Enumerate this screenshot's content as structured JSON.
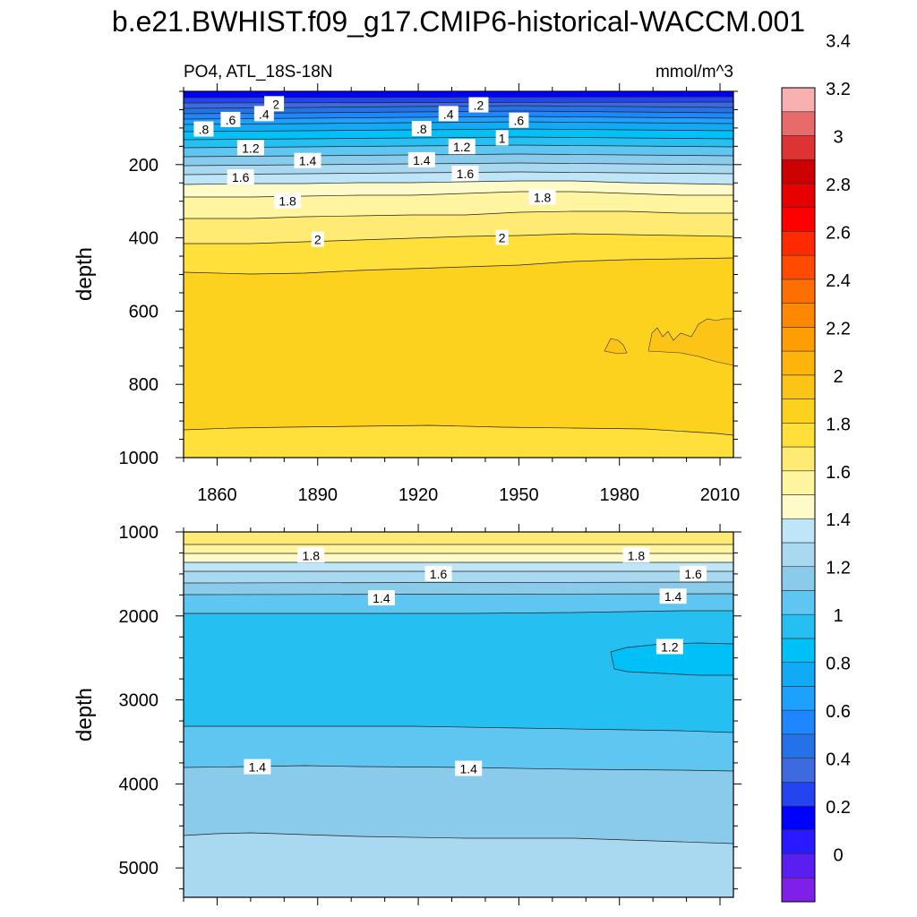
{
  "title": "b.e21.BWHIST.f09_g17.CMIP6-historical-WACCM.001",
  "colors": {
    "levels": [
      -0.2,
      0,
      0.2,
      0.4,
      0.6,
      0.8,
      1.0,
      1.2,
      1.4,
      1.6,
      1.8,
      2.0,
      2.2,
      2.4,
      2.6,
      2.8,
      3.0,
      3.2,
      3.4,
      3.6
    ],
    "palette": [
      "#7f1fe8",
      "#5a1ef0",
      "#2a1aff",
      "#0000ff",
      "#2344ee",
      "#3e6ae0",
      "#2572e8",
      "#1e86ff",
      "#1ea0ff",
      "#10aaf5",
      "#00c0f8",
      "#26bff2",
      "#5fc6f2",
      "#8acbeb",
      "#a9d9f0",
      "#bfe5f8",
      "#fffbc8",
      "#fff5a0",
      "#ffeb74",
      "#ffe03a",
      "#fcd21e",
      "#fcc416",
      "#ffb40c",
      "#ff9e04",
      "#ff8800",
      "#ff6e00",
      "#ff4a00",
      "#ff2a00",
      "#ff0000",
      "#e60000",
      "#cc0000",
      "#dd3333",
      "#e86a6a",
      "#f8b0b0"
    ]
  },
  "chart_data": [
    {
      "type": "heatmap",
      "variable": "PO4, ATL_18S-18N",
      "units": "mmol/m^3",
      "ylabel": "depth",
      "xlim": [
        1850,
        2014
      ],
      "ylim": [
        0,
        1000
      ],
      "y_reversed": true,
      "xticks": [
        1860,
        1890,
        1920,
        1950,
        1980,
        2010
      ],
      "yticks": [
        200,
        400,
        600,
        800,
        1000
      ],
      "grid": false,
      "contour_labels": [
        {
          "text": ".2",
          "x": 1877,
          "y": 35
        },
        {
          "text": ".2",
          "x": 1938,
          "y": 38
        },
        {
          "text": ".4",
          "x": 1874,
          "y": 62
        },
        {
          "text": ".4",
          "x": 1929,
          "y": 62
        },
        {
          "text": ".6",
          "x": 1864,
          "y": 78
        },
        {
          "text": ".6",
          "x": 1950,
          "y": 80
        },
        {
          "text": ".8",
          "x": 1856,
          "y": 104
        },
        {
          "text": ".8",
          "x": 1921,
          "y": 103
        },
        {
          "text": "1",
          "x": 1945,
          "y": 128
        },
        {
          "text": "1.2",
          "x": 1870,
          "y": 155
        },
        {
          "text": "1.2",
          "x": 1933,
          "y": 152
        },
        {
          "text": "1.4",
          "x": 1887,
          "y": 190
        },
        {
          "text": "1.4",
          "x": 1921,
          "y": 188
        },
        {
          "text": "1.6",
          "x": 1867,
          "y": 235
        },
        {
          "text": "1.6",
          "x": 1934,
          "y": 225
        },
        {
          "text": "1.8",
          "x": 1881,
          "y": 300
        },
        {
          "text": "1.8",
          "x": 1957,
          "y": 290
        },
        {
          "text": "2",
          "x": 1890,
          "y": 405
        },
        {
          "text": "2",
          "x": 1945,
          "y": 400
        }
      ]
    },
    {
      "type": "heatmap",
      "ylabel": "depth",
      "xlim": [
        1850,
        2014
      ],
      "ylim": [
        1000,
        5350
      ],
      "y_reversed": true,
      "xticks": [
        1860,
        1890,
        1920,
        1950,
        1980,
        2010
      ],
      "yticks": [
        1000,
        2000,
        3000,
        4000,
        5000
      ],
      "grid": false,
      "contour_labels": [
        {
          "text": "1.8",
          "x": 1888,
          "y": 1280
        },
        {
          "text": "1.8",
          "x": 1985,
          "y": 1280
        },
        {
          "text": "1.6",
          "x": 1926,
          "y": 1500
        },
        {
          "text": "1.6",
          "x": 2002,
          "y": 1500
        },
        {
          "text": "1.4",
          "x": 1909,
          "y": 1790
        },
        {
          "text": "1.4",
          "x": 1996,
          "y": 1770
        },
        {
          "text": "1.2",
          "x": 1995,
          "y": 2370
        },
        {
          "text": "1.4",
          "x": 1872,
          "y": 3800
        },
        {
          "text": "1.4",
          "x": 1935,
          "y": 3820
        }
      ]
    }
  ],
  "colorbar": {
    "labels": [
      "0",
      "0.2",
      "0.4",
      "0.6",
      "0.8",
      "1",
      "1.2",
      "1.4",
      "1.6",
      "1.8",
      "2",
      "2.2",
      "2.4",
      "2.6",
      "2.8",
      "3",
      "3.2",
      "3.4"
    ]
  }
}
